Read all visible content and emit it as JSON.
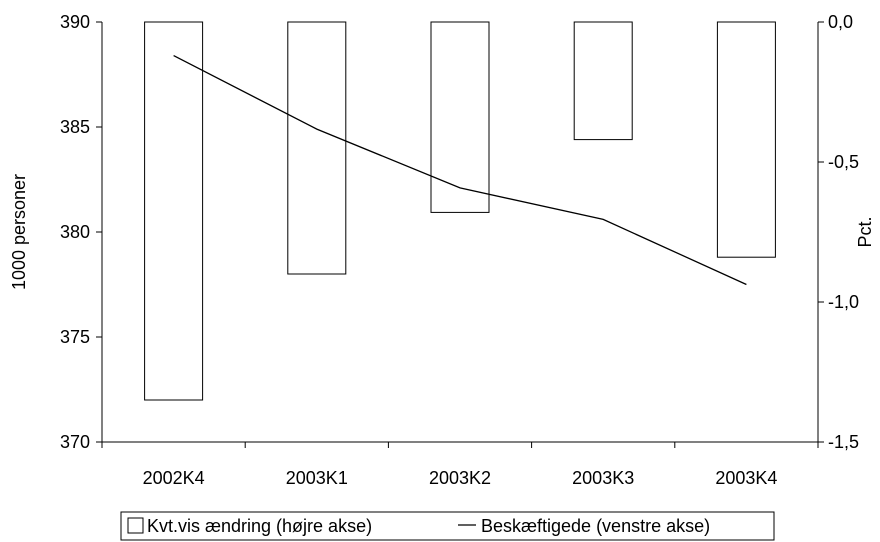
{
  "chart_data": {
    "type": "bar",
    "title": "",
    "categories": [
      "2002K4",
      "2003K1",
      "2003K2",
      "2003K3",
      "2003K4"
    ],
    "bar_series": {
      "name": "Kvt.vis ændring (højre akse)",
      "axis": "right",
      "values": [
        -1.35,
        -0.9,
        -0.68,
        -0.42,
        -0.84
      ]
    },
    "line_series": {
      "name": "Beskæftigede (venstre akse)",
      "axis": "left",
      "values": [
        388.4,
        384.9,
        382.1,
        380.6,
        377.5
      ]
    },
    "left_axis": {
      "label": "1000 personer",
      "ylim": [
        370,
        390
      ],
      "ticks": [
        390,
        385,
        380,
        375,
        370
      ],
      "tick_labels": [
        "390",
        "385",
        "380",
        "375",
        "370"
      ]
    },
    "right_axis": {
      "label": "Pct.",
      "ylim": [
        -1.5,
        0.0
      ],
      "ticks": [
        0.0,
        -0.5,
        -1.0,
        -1.5
      ],
      "tick_labels": [
        "0,0",
        "-0,5",
        "-1,0",
        "-1,5"
      ]
    },
    "grid": false,
    "legend_position": "bottom"
  }
}
